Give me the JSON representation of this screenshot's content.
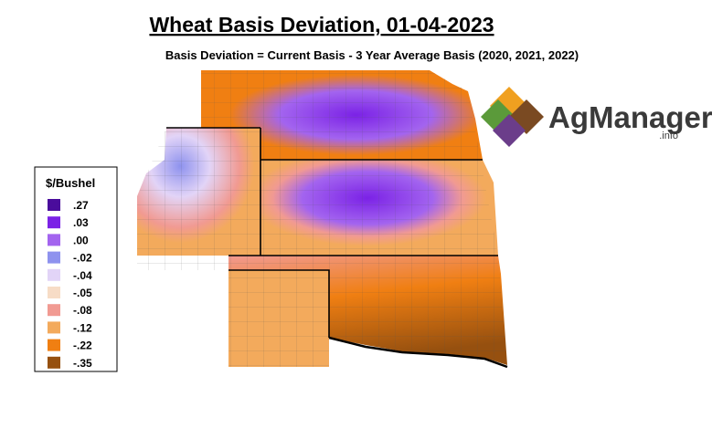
{
  "header": {
    "title": "Wheat Basis Deviation, 01-04-2023",
    "subtitle": "Basis Deviation = Current Basis - 3 Year Average Basis (2020, 2021, 2022)"
  },
  "legend": {
    "title": "$/Bushel",
    "items": [
      {
        "label": ".27",
        "color": "#4a0c9c"
      },
      {
        "label": ".03",
        "color": "#7b22e6"
      },
      {
        "label": ".00",
        "color": "#a364ef"
      },
      {
        "label": "-.02",
        "color": "#8e92ee"
      },
      {
        "label": "-.04",
        "color": "#e2d4f7"
      },
      {
        "label": "-.05",
        "color": "#f7dcc6"
      },
      {
        "label": "-.08",
        "color": "#f19a92"
      },
      {
        "label": "-.12",
        "color": "#f3aa5c"
      },
      {
        "label": "-.22",
        "color": "#f07f12"
      },
      {
        "label": "-.35",
        "color": "#96500f"
      }
    ]
  },
  "logo": {
    "name": "AgManager",
    "suffix": ".info"
  }
}
